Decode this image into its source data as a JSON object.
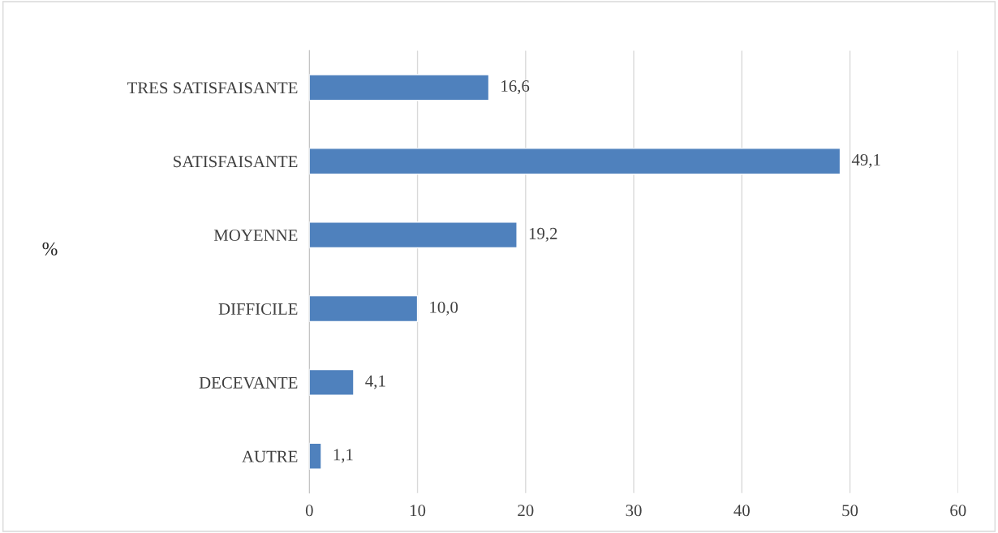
{
  "chart_data": {
    "type": "bar",
    "orientation": "horizontal",
    "ylabel": "%",
    "categories": [
      "TRES SATISFAISANTE",
      "SATISFAISANTE",
      "MOYENNE",
      "DIFFICILE",
      "DECEVANTE",
      "AUTRE"
    ],
    "values": [
      16.6,
      49.1,
      19.2,
      10.0,
      4.1,
      1.1
    ],
    "value_labels": [
      "16,6",
      "49,1",
      "19,2",
      "10,0",
      "4,1",
      "1,1"
    ],
    "color": "#4f81bd",
    "xlim": [
      0,
      60
    ],
    "xticks": [
      0,
      10,
      20,
      30,
      40,
      50,
      60
    ],
    "grid": "x",
    "legend": false
  }
}
